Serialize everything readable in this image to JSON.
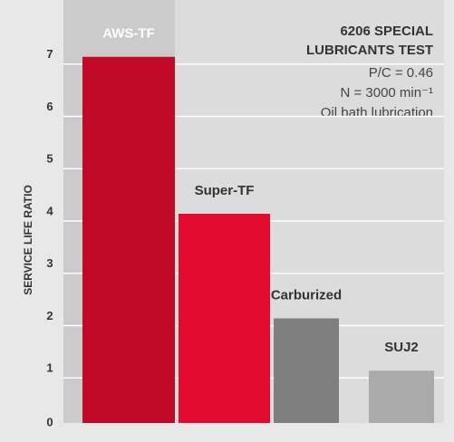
{
  "chart_data": {
    "type": "bar",
    "title": [
      "6206 SPECIAL",
      "LUBRICANTS TEST"
    ],
    "annotations": [
      "P/C = 0.46",
      "N = 3000 min⁻¹",
      "Oil bath lubrication"
    ],
    "y_label": "SERVICE LIFE RATIO",
    "categories": [
      "AWS-TF",
      "Super-TF",
      "Carburized",
      "SUJ2"
    ],
    "values": [
      7,
      4,
      2,
      1
    ],
    "colors": [
      "#c10a27",
      "#e30b30",
      "#7f7f7f",
      "#aaaaaa"
    ],
    "ylim": [
      0,
      8
    ],
    "yticks": [
      0,
      1,
      2,
      3,
      4,
      5,
      6,
      7
    ],
    "grid": true
  }
}
